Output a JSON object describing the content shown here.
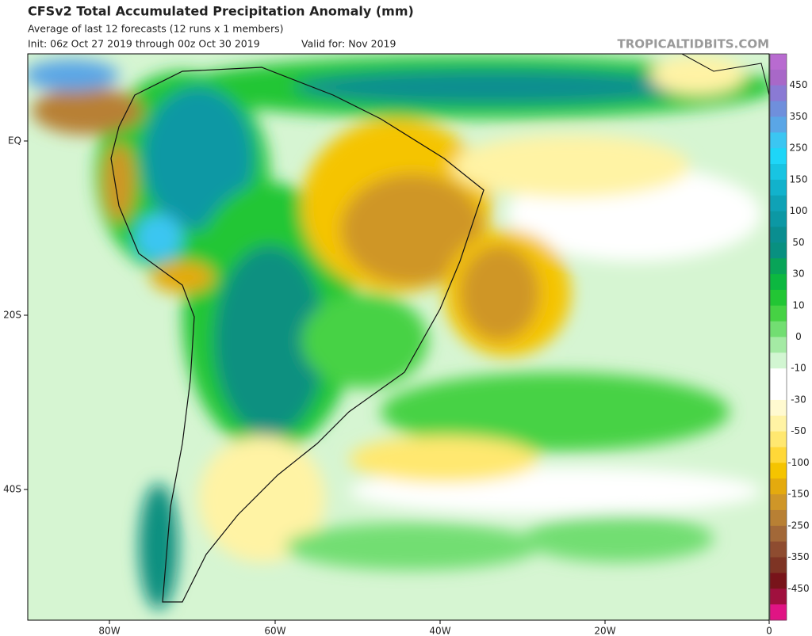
{
  "header": {
    "title": "CFSv2 Total Accumulated Precipitation Anomaly (mm)",
    "subtitle": "Average of last 12 forecasts (12 runs x 1 members)",
    "init": "Init: 06z Oct 27 2019 through 00z Oct 30 2019",
    "valid": "Valid for: Nov 2019",
    "credit": "TROPICALTIDBITS.COM"
  },
  "axes": {
    "lat_labels": [
      "EQ",
      "20S",
      "40S"
    ],
    "lon_labels": [
      "80W",
      "60W",
      "40W",
      "20W",
      "0"
    ]
  },
  "colorbar": {
    "labels": [
      450,
      350,
      250,
      150,
      100,
      50,
      30,
      10,
      0,
      -10,
      -30,
      -50,
      -100,
      -150,
      -250,
      -350,
      -450
    ],
    "colors": [
      "#b86bd0",
      "#a868c8",
      "#8a7ad4",
      "#6f8fdc",
      "#5aa6e6",
      "#3bc6f2",
      "#1ed6f8",
      "#18c4e2",
      "#12b2cc",
      "#0fa2b6",
      "#0c98a4",
      "#0a8e90",
      "#089080",
      "#08a458",
      "#0cb840",
      "#22c634",
      "#46d244",
      "#72de72",
      "#a4eaa4",
      "#d2f6d2",
      "#ffffff",
      "#ffffff",
      "#fffad0",
      "#fff3a4",
      "#ffe870",
      "#ffd838",
      "#f5c400",
      "#e4aa0e",
      "#cf9628",
      "#b88034",
      "#a26838",
      "#8e4c30",
      "#7e3424",
      "#78141a",
      "#a0103e",
      "#e01484"
    ]
  }
}
